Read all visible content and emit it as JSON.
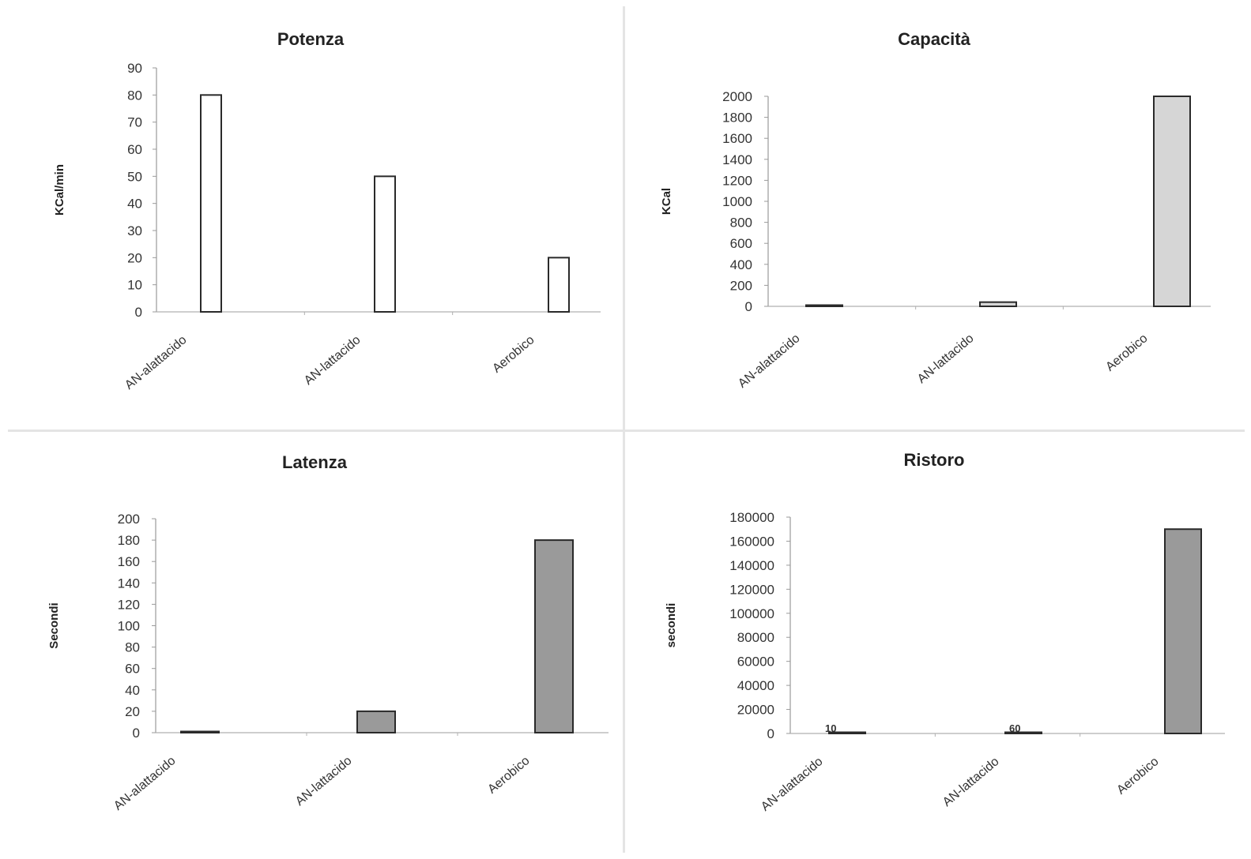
{
  "chart_data": [
    {
      "type": "bar",
      "title": "Potenza",
      "ylabel": "KCal/min",
      "xlabel": "",
      "categories": [
        "AN-alattacido",
        "AN-lattacido",
        "Aerobico"
      ],
      "values": [
        80,
        50,
        20
      ],
      "ylim": [
        0,
        90
      ],
      "yticks": [
        "0",
        "10",
        "20",
        "30",
        "40",
        "50",
        "60",
        "70",
        "80",
        "90"
      ],
      "bar_fill": "#ffffff",
      "annotations": []
    },
    {
      "type": "bar",
      "title": "Capacità",
      "ylabel": "KCal",
      "xlabel": "",
      "categories": [
        "AN-alattacido",
        "AN-lattacido",
        "Aerobico"
      ],
      "values": [
        8,
        40,
        2000
      ],
      "ylim": [
        0,
        2000
      ],
      "yticks": [
        "0",
        "200",
        "400",
        "600",
        "800",
        "1000",
        "1200",
        "1400",
        "1600",
        "1800",
        "2000"
      ],
      "bar_fill": "#d6d6d6",
      "annotations": []
    },
    {
      "type": "bar",
      "title": "Latenza",
      "ylabel": "Secondi",
      "xlabel": "",
      "categories": [
        "AN-alattacido",
        "AN-lattacido",
        "Aerobico"
      ],
      "values": [
        1,
        20,
        180
      ],
      "ylim": [
        0,
        200
      ],
      "yticks": [
        "0",
        "20",
        "40",
        "60",
        "80",
        "100",
        "120",
        "140",
        "160",
        "180",
        "200"
      ],
      "bar_fill": "#9a9a9a",
      "annotations": []
    },
    {
      "type": "bar",
      "title": "Ristoro",
      "ylabel": "secondi",
      "xlabel": "",
      "categories": [
        "AN-alattacido",
        "AN-lattacido",
        "Aerobico"
      ],
      "values": [
        10,
        60,
        170000
      ],
      "ylim": [
        0,
        180000
      ],
      "yticks": [
        "0",
        "20000",
        "40000",
        "60000",
        "80000",
        "100000",
        "120000",
        "140000",
        "160000",
        "180000"
      ],
      "bar_fill": "#9a9a9a",
      "annotations": [
        "10",
        "60"
      ]
    }
  ]
}
